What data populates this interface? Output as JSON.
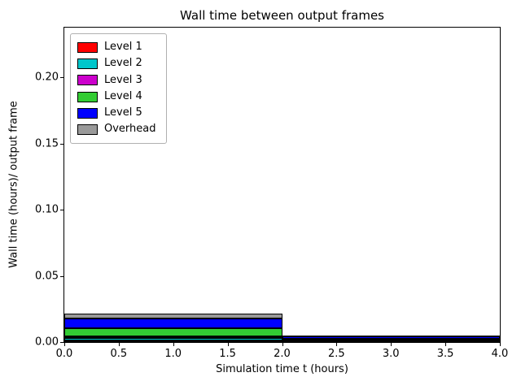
{
  "chart_data": {
    "type": "bar",
    "stacked": true,
    "title": "Wall time between output frames",
    "xlabel": "Simulation time t (hours)",
    "ylabel": "Wall time (hours)/ output frame",
    "xlim": [
      0.0,
      4.0
    ],
    "ylim": [
      0.0,
      0.2375
    ],
    "grid": false,
    "legend_position": "upper left",
    "bar_edge_color": "#000000",
    "xticks": [
      {
        "v": 0.0,
        "label": "0.0"
      },
      {
        "v": 0.5,
        "label": "0.5"
      },
      {
        "v": 1.0,
        "label": "1.0"
      },
      {
        "v": 1.5,
        "label": "1.5"
      },
      {
        "v": 2.0,
        "label": "2.0"
      },
      {
        "v": 2.5,
        "label": "2.5"
      },
      {
        "v": 3.0,
        "label": "3.0"
      },
      {
        "v": 3.5,
        "label": "3.5"
      },
      {
        "v": 4.0,
        "label": "4.0"
      }
    ],
    "yticks": [
      {
        "v": 0.0,
        "label": "0.00"
      },
      {
        "v": 0.05,
        "label": "0.05"
      },
      {
        "v": 0.1,
        "label": "0.10"
      },
      {
        "v": 0.15,
        "label": "0.15"
      },
      {
        "v": 0.2,
        "label": "0.20"
      }
    ],
    "x_intervals": [
      [
        0.0,
        2.0
      ],
      [
        2.0,
        4.0
      ]
    ],
    "series": [
      {
        "name": "Level 1",
        "color": "#ff0000",
        "values": [
          0.0015,
          0.0004
        ]
      },
      {
        "name": "Level 2",
        "color": "#00c6cb",
        "values": [
          0.0015,
          0.0004
        ]
      },
      {
        "name": "Level 3",
        "color": "#cc00cc",
        "values": [
          0.0015,
          0.0004
        ]
      },
      {
        "name": "Level 4",
        "color": "#33cc33",
        "values": [
          0.006,
          0.001
        ]
      },
      {
        "name": "Level 5",
        "color": "#0000ff",
        "values": [
          0.007,
          0.002
        ]
      },
      {
        "name": "Overhead",
        "color": "#9a9a9a",
        "values": [
          0.004,
          0.0006
        ]
      }
    ]
  }
}
